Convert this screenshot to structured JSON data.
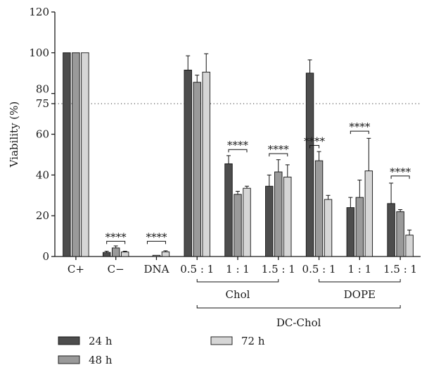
{
  "chart_data": {
    "type": "bar",
    "ylabel": "Viability (%)",
    "ylim": [
      0,
      120
    ],
    "yticks": [
      0,
      20,
      40,
      60,
      80,
      100,
      120
    ],
    "reference_line": {
      "value": 75,
      "label": "75",
      "style": "dotted"
    },
    "categories": [
      "C+",
      "C−",
      "DNA",
      "0.5 : 1",
      "1 : 1",
      "1.5 : 1",
      "0.5 : 1",
      "1 : 1",
      "1.5 : 1"
    ],
    "series": [
      {
        "name": "24 h",
        "color": "#4d4d4d",
        "values": [
          100,
          2,
          0,
          91.5,
          45.5,
          34.5,
          90,
          24,
          26
        ],
        "errors": [
          0,
          0.6,
          0,
          7,
          4,
          5.5,
          6.5,
          5,
          10
        ]
      },
      {
        "name": "48 h",
        "color": "#9a9a9a",
        "values": [
          100,
          4.2,
          0.6,
          85.5,
          30.5,
          41.5,
          47,
          29,
          22
        ],
        "errors": [
          0,
          1,
          0,
          3.5,
          1.5,
          6,
          4.5,
          8.5,
          1
        ]
      },
      {
        "name": "72 h",
        "color": "#d6d6d6",
        "values": [
          100,
          2.2,
          2.3,
          90.5,
          33.5,
          39,
          28,
          42,
          10.5
        ],
        "errors": [
          0,
          0.4,
          0.5,
          9,
          1,
          6,
          2,
          16,
          2.5
        ]
      }
    ],
    "significance": [
      {
        "category_index": 1,
        "label": "****",
        "from": 0,
        "to": 2,
        "y": 7.5
      },
      {
        "category_index": 2,
        "label": "****",
        "from": 0,
        "to": 2,
        "y": 7.5
      },
      {
        "category_index": 4,
        "label": "****",
        "from": 0,
        "to": 2,
        "y": 52.5
      },
      {
        "category_index": 5,
        "label": "****",
        "from": 0,
        "to": 2,
        "y": 50.5
      },
      {
        "category_index": 6,
        "label": "****",
        "from": 0,
        "to": 1,
        "y": 54.5
      },
      {
        "category_index": 7,
        "label": "****",
        "from": 0,
        "to": 2,
        "y": 61.5
      },
      {
        "category_index": 8,
        "label": "****",
        "from": 0,
        "to": 2,
        "y": 39.5
      }
    ],
    "group_labels": [
      {
        "label": "Chol",
        "from": 3,
        "to": 5,
        "level": 1
      },
      {
        "label": "DOPE",
        "from": 6,
        "to": 8,
        "level": 1
      },
      {
        "label": "DC-Chol",
        "from": 3,
        "to": 8,
        "level": 2
      }
    ],
    "legend_placement": "bottom-left"
  }
}
